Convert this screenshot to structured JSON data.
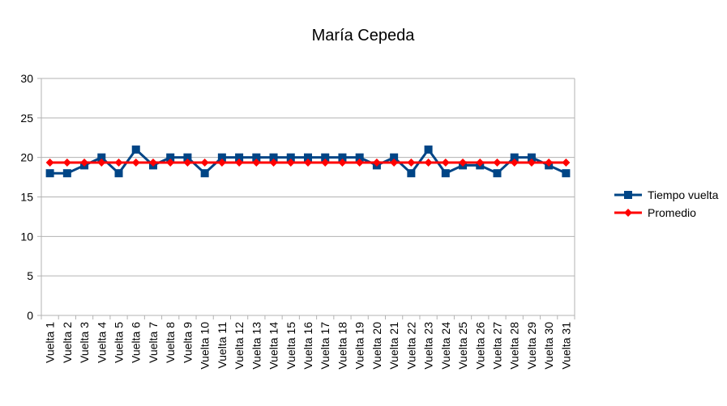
{
  "chart_data": {
    "type": "line",
    "title": "María Cepeda",
    "xlabel": "",
    "ylabel": "",
    "ylim": [
      0,
      30
    ],
    "yticks": [
      "0",
      "5",
      "10",
      "15",
      "20",
      "25",
      "30"
    ],
    "grid": true,
    "legend_position": "right",
    "categories": [
      "Vuelta 1",
      "Vuelta 2",
      "Vuelta 3",
      "Vuelta 4",
      "Vuelta 5",
      "Vuelta 6",
      "Vuelta 7",
      "Vuelta 8",
      "Vuelta 9",
      "Vuelta 10",
      "Vuelta 11",
      "Vuelta 12",
      "Vuelta 13",
      "Vuelta 14",
      "Vuelta 15",
      "Vuelta 16",
      "Vuelta 17",
      "Vuelta 18",
      "Vuelta 19",
      "Vuelta 20",
      "Vuelta 21",
      "Vuelta 22",
      "Vuelta 23",
      "Vuelta 24",
      "Vuelta 25",
      "Vuelta 26",
      "Vuelta 27",
      "Vuelta 28",
      "Vuelta 29",
      "Vuelta 30",
      "Vuelta 31"
    ],
    "series": [
      {
        "name": "Tiempo vuelta",
        "color": "#004586",
        "marker": "square",
        "values": [
          18,
          18,
          19,
          20,
          18,
          21,
          19,
          20,
          20,
          18,
          20,
          20,
          20,
          20,
          20,
          20,
          20,
          20,
          20,
          19,
          20,
          18,
          21,
          18,
          19,
          19,
          18,
          20,
          20,
          19,
          18
        ]
      },
      {
        "name": "Promedio",
        "color": "#ff0000",
        "marker": "diamond",
        "values": [
          19.35,
          19.35,
          19.35,
          19.35,
          19.35,
          19.35,
          19.35,
          19.35,
          19.35,
          19.35,
          19.35,
          19.35,
          19.35,
          19.35,
          19.35,
          19.35,
          19.35,
          19.35,
          19.35,
          19.35,
          19.35,
          19.35,
          19.35,
          19.35,
          19.35,
          19.35,
          19.35,
          19.35,
          19.35,
          19.35,
          19.35
        ]
      }
    ]
  }
}
